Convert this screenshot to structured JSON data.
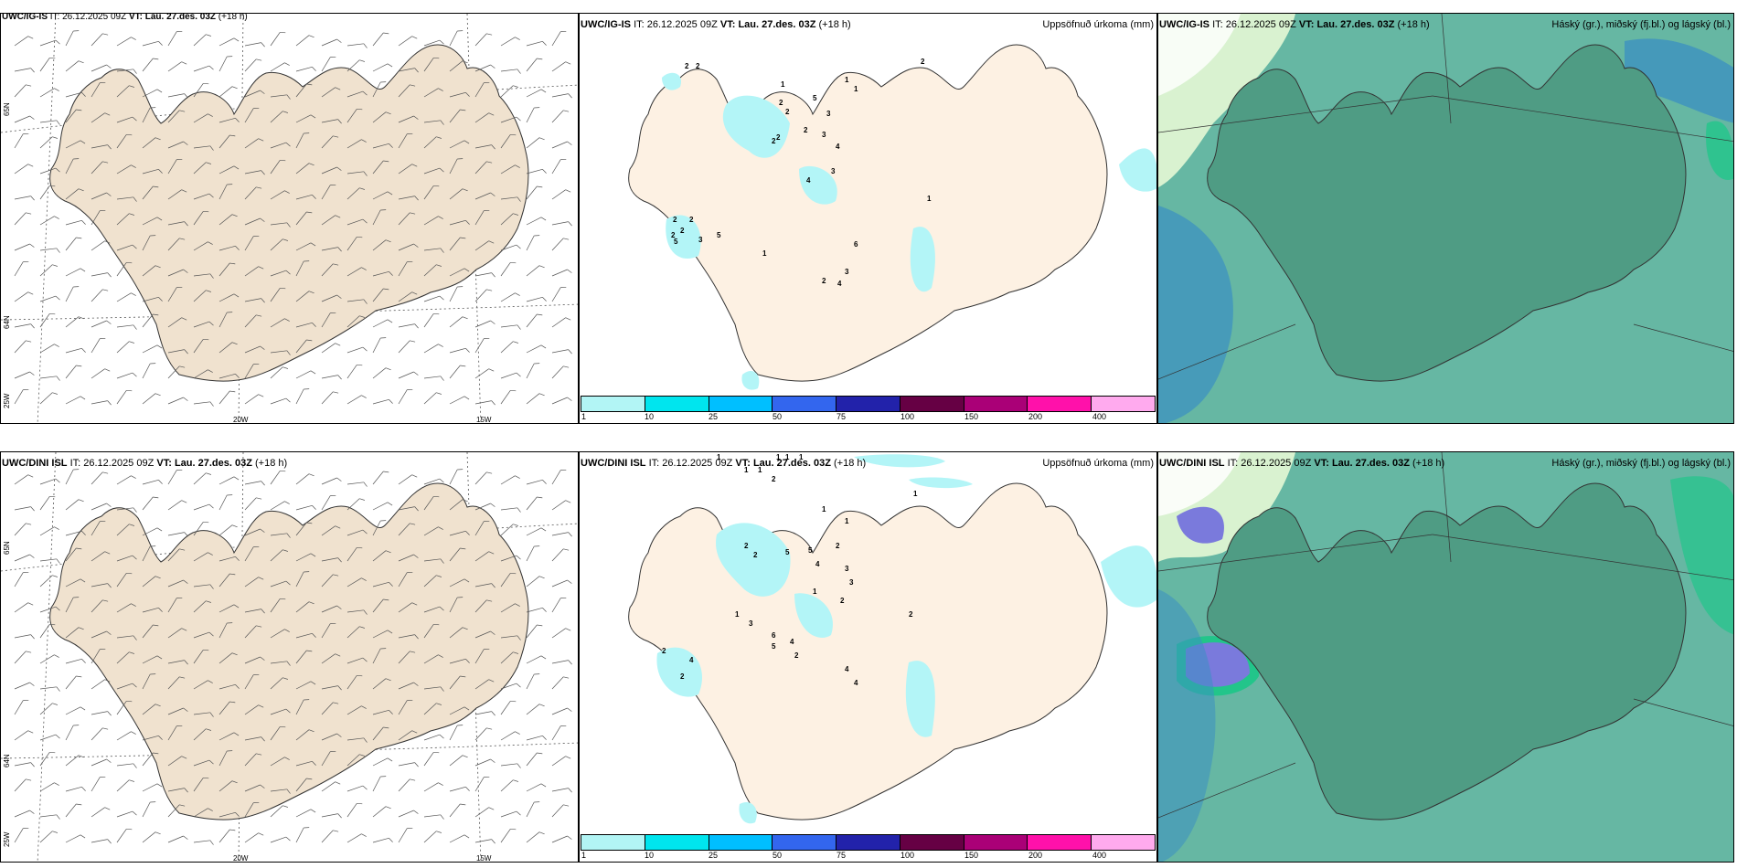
{
  "panels": [
    {
      "id": "wind-igis",
      "header": {
        "model": "UWC/IG-IS",
        "it_label": "IT:",
        "it_value": "26.12.2025 09Z",
        "vt_label": "VT: Lau. 27.des. 03Z",
        "lead": "(+18 h)",
        "right": ""
      },
      "lon_labels": [
        "20W",
        "15W"
      ],
      "lat_labels": [
        "65N",
        "64N",
        "25W"
      ]
    },
    {
      "id": "precip-igis",
      "header": {
        "model": "UWC/IG-IS",
        "it_label": "IT:",
        "it_value": "26.12.2025 09Z",
        "vt_label": "VT: Lau. 27.des. 03Z",
        "lead": "(+18 h)",
        "right": "Uppsöfnuð úrkoma (mm)"
      }
    },
    {
      "id": "cloud-igis",
      "header": {
        "model": "UWC/IG-IS",
        "it_label": "IT:",
        "it_value": "26.12.2025 09Z",
        "vt_label": "VT: Lau. 27.des. 03Z",
        "lead": "(+18 h)",
        "right": "Háský (gr.), miðský (fj.bl.) og lágský (bl.)"
      }
    },
    {
      "id": "wind-dini",
      "header": {
        "model": "UWC/DINI ISL",
        "it_label": "IT:",
        "it_value": "26.12.2025 09Z",
        "vt_label": "VT: Lau. 27.des. 03Z",
        "lead": "(+18 h)",
        "right": ""
      },
      "lon_labels": [
        "20W",
        "15W"
      ],
      "lat_labels": [
        "65N",
        "64N",
        "25W"
      ]
    },
    {
      "id": "precip-dini",
      "header": {
        "model": "UWC/DINI ISL",
        "it_label": "IT:",
        "it_value": "26.12.2025 09Z",
        "vt_label": "VT: Lau. 27.des. 03Z",
        "lead": "(+18 h)",
        "right": "Uppsöfnuð úrkoma (mm)"
      }
    },
    {
      "id": "cloud-dini",
      "header": {
        "model": "UWC/DINI ISL",
        "it_label": "IT:",
        "it_value": "26.12.2025 09Z",
        "vt_label": "VT: Lau. 27.des. 03Z",
        "lead": "(+18 h)",
        "right": "Háský (gr.), miðský (fj.bl.) og lágský (bl.)"
      }
    }
  ],
  "precip_legend": {
    "ticks": [
      "1",
      "10",
      "25",
      "50",
      "75",
      "100",
      "150",
      "200",
      "400"
    ],
    "colors": [
      "#b2f5f5",
      "#00e5ee",
      "#00bfff",
      "#3366ee",
      "#2222aa",
      "#660044",
      "#aa0077",
      "#ff11aa",
      "#ffaaee"
    ]
  },
  "precip_values_igis": [
    "2",
    "2",
    "2",
    "1",
    "2",
    "5",
    "2",
    "2",
    "1",
    "1",
    "2",
    "3",
    "3",
    "4",
    "2",
    "3",
    "4",
    "2",
    "2",
    "2",
    "5",
    "5",
    "3",
    "6",
    "1",
    "1",
    "3",
    "2",
    "4",
    "2"
  ],
  "precip_values_dini": [
    "1",
    "1",
    "1",
    "1",
    "1",
    "1",
    "2",
    "1",
    "1",
    "1",
    "2",
    "2",
    "5",
    "5",
    "4",
    "2",
    "3",
    "3",
    "2",
    "1",
    "2",
    "1",
    "3",
    "6",
    "4",
    "5",
    "2",
    "4",
    "2",
    "2",
    "4",
    "4"
  ],
  "colors": {
    "land": "#f0e2cf",
    "precip_land": "#fdf1e3",
    "ocean_cloud": "#66b7a3",
    "land_cloud": "#4f9c84",
    "high_cloud": "#d9f2d0",
    "mid_cloud": "#2f8fc4",
    "low_cloud": "#7a7adc"
  }
}
